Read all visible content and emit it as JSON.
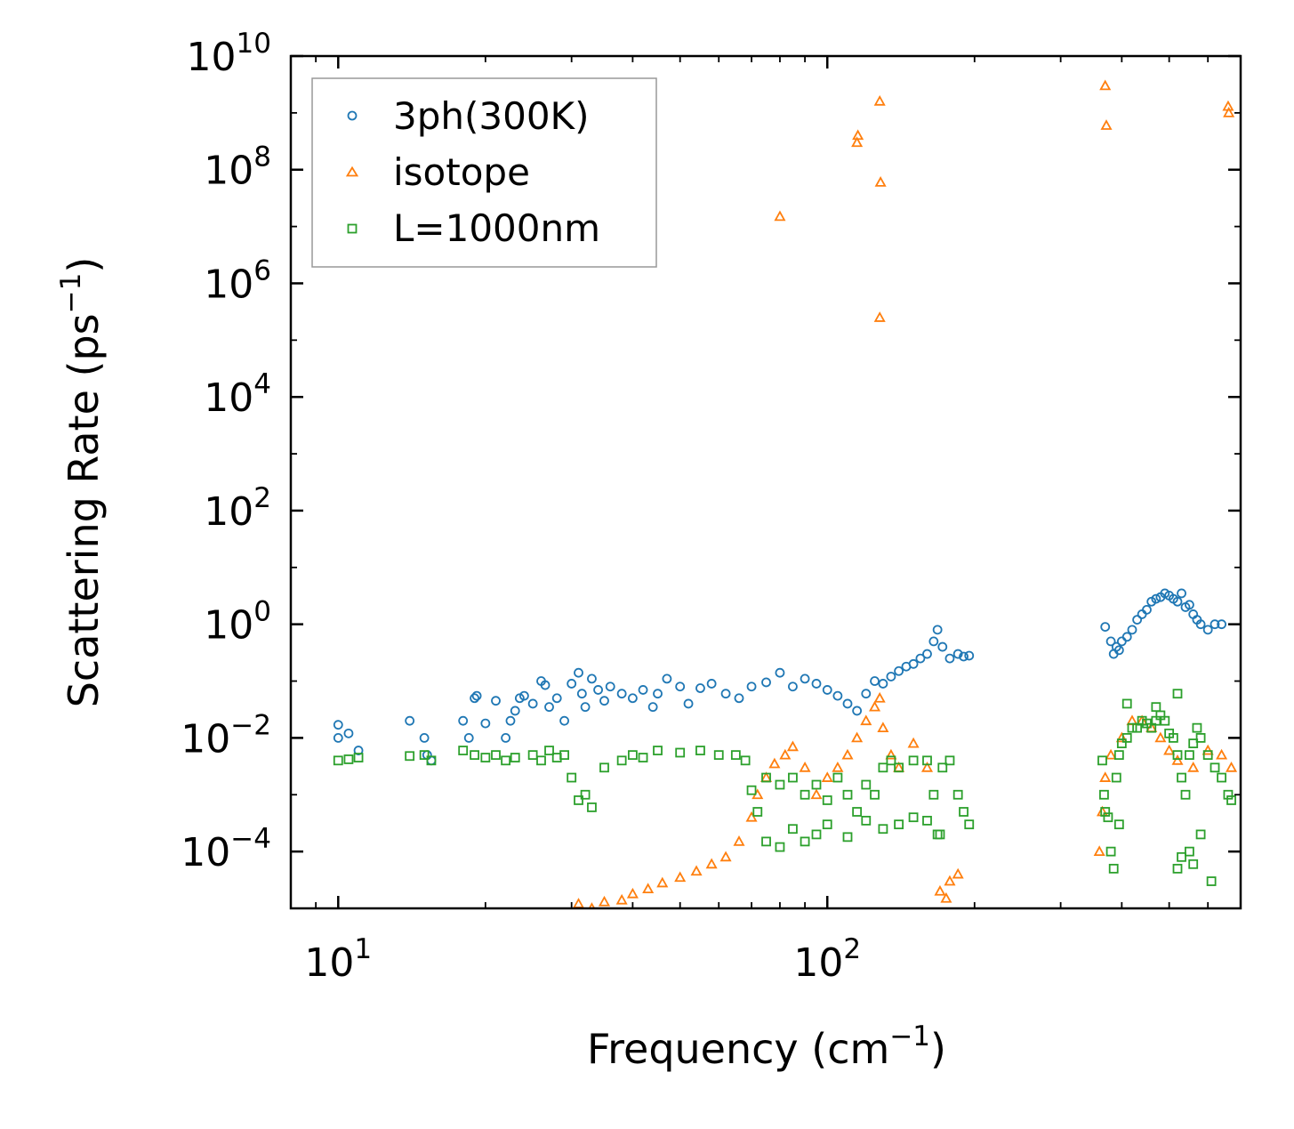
{
  "chart_data": {
    "type": "scatter",
    "xscale": "log",
    "yscale": "log",
    "xlim": [
      8,
      700
    ],
    "ylim": [
      1e-05,
      10000000000.0
    ],
    "xlabel_text": "Frequency (cm",
    "xlabel_sup": "−1",
    "xlabel_close": ")",
    "ylabel_text": "Scattering Rate (ps",
    "ylabel_sup": "−1",
    "ylabel_close": ")",
    "xtick_labels": [
      {
        "value": 10,
        "base": "10",
        "exp": "1"
      },
      {
        "value": 100,
        "base": "10",
        "exp": "2"
      }
    ],
    "ytick_labels": [
      {
        "value": 10000000000.0,
        "base": "10",
        "exp": "10"
      },
      {
        "value": 100000000.0,
        "base": "10",
        "exp": "8"
      },
      {
        "value": 1000000.0,
        "base": "10",
        "exp": "6"
      },
      {
        "value": 10000.0,
        "base": "10",
        "exp": "4"
      },
      {
        "value": 100.0,
        "base": "10",
        "exp": "2"
      },
      {
        "value": 1,
        "base": "10",
        "exp": "0"
      },
      {
        "value": 0.01,
        "base": "10",
        "exp": "−2"
      },
      {
        "value": 0.0001,
        "base": "10",
        "exp": "−4"
      }
    ],
    "legend_position": "upper-left",
    "series": [
      {
        "name": "3ph(300K)",
        "marker": "circle",
        "color": "#1f77b4",
        "points": [
          [
            10,
            0.017
          ],
          [
            10,
            0.01
          ],
          [
            10.5,
            0.012
          ],
          [
            11,
            0.006
          ],
          [
            14,
            0.02
          ],
          [
            15,
            0.01
          ],
          [
            15.2,
            0.005
          ],
          [
            15.5,
            0.004
          ],
          [
            18,
            0.02
          ],
          [
            18.5,
            0.01
          ],
          [
            19,
            0.05
          ],
          [
            19.2,
            0.055
          ],
          [
            20,
            0.018
          ],
          [
            21,
            0.045
          ],
          [
            22,
            0.01
          ],
          [
            22.5,
            0.02
          ],
          [
            23,
            0.03
          ],
          [
            23.5,
            0.05
          ],
          [
            24,
            0.055
          ],
          [
            25,
            0.04
          ],
          [
            26,
            0.1
          ],
          [
            26.5,
            0.085
          ],
          [
            27,
            0.035
          ],
          [
            28,
            0.05
          ],
          [
            29,
            0.02
          ],
          [
            30,
            0.09
          ],
          [
            31,
            0.14
          ],
          [
            31.5,
            0.06
          ],
          [
            32,
            0.035
          ],
          [
            33,
            0.11
          ],
          [
            34,
            0.07
          ],
          [
            35,
            0.045
          ],
          [
            36,
            0.08
          ],
          [
            38,
            0.06
          ],
          [
            40,
            0.05
          ],
          [
            42,
            0.07
          ],
          [
            44,
            0.035
          ],
          [
            45,
            0.06
          ],
          [
            47,
            0.11
          ],
          [
            50,
            0.08
          ],
          [
            52,
            0.04
          ],
          [
            55,
            0.075
          ],
          [
            58,
            0.09
          ],
          [
            62,
            0.06
          ],
          [
            66,
            0.05
          ],
          [
            70,
            0.08
          ],
          [
            75,
            0.095
          ],
          [
            80,
            0.14
          ],
          [
            85,
            0.08
          ],
          [
            90,
            0.11
          ],
          [
            95,
            0.09
          ],
          [
            100,
            0.07
          ],
          [
            105,
            0.055
          ],
          [
            110,
            0.04
          ],
          [
            115,
            0.03
          ],
          [
            120,
            0.06
          ],
          [
            125,
            0.1
          ],
          [
            130,
            0.09
          ],
          [
            135,
            0.12
          ],
          [
            140,
            0.15
          ],
          [
            145,
            0.18
          ],
          [
            150,
            0.2
          ],
          [
            155,
            0.25
          ],
          [
            160,
            0.3
          ],
          [
            165,
            0.5
          ],
          [
            168,
            0.8
          ],
          [
            172,
            0.4
          ],
          [
            178,
            0.25
          ],
          [
            185,
            0.3
          ],
          [
            190,
            0.27
          ],
          [
            195,
            0.28
          ],
          [
            370,
            0.9
          ],
          [
            380,
            0.5
          ],
          [
            385,
            0.3
          ],
          [
            390,
            0.4
          ],
          [
            395,
            0.35
          ],
          [
            400,
            0.5
          ],
          [
            410,
            0.6
          ],
          [
            420,
            0.8
          ],
          [
            430,
            1.2
          ],
          [
            440,
            1.5
          ],
          [
            450,
            1.8
          ],
          [
            460,
            2.5
          ],
          [
            470,
            2.8
          ],
          [
            480,
            3.0
          ],
          [
            490,
            3.5
          ],
          [
            500,
            3.2
          ],
          [
            510,
            2.8
          ],
          [
            520,
            2.5
          ],
          [
            530,
            3.5
          ],
          [
            540,
            2.0
          ],
          [
            550,
            2.2
          ],
          [
            560,
            1.5
          ],
          [
            570,
            1.2
          ],
          [
            580,
            1.0
          ],
          [
            600,
            0.8
          ],
          [
            620,
            1.0
          ],
          [
            640,
            1.0
          ]
        ]
      },
      {
        "name": "isotope",
        "marker": "triangle",
        "color": "#ff7f0e",
        "points": [
          [
            31,
            1.2e-05
          ],
          [
            33,
            1e-05
          ],
          [
            35,
            1.3e-05
          ],
          [
            38,
            1.4e-05
          ],
          [
            40,
            1.8e-05
          ],
          [
            43,
            2.2e-05
          ],
          [
            46,
            2.8e-05
          ],
          [
            50,
            3.5e-05
          ],
          [
            54,
            4.5e-05
          ],
          [
            58,
            6e-05
          ],
          [
            62,
            8e-05
          ],
          [
            66,
            0.00015
          ],
          [
            70,
            0.0004
          ],
          [
            72,
            0.001
          ],
          [
            75,
            0.002
          ],
          [
            78,
            0.0035
          ],
          [
            82,
            0.005
          ],
          [
            85,
            0.007
          ],
          [
            90,
            0.003
          ],
          [
            95,
            0.001
          ],
          [
            100,
            0.002
          ],
          [
            105,
            0.003
          ],
          [
            110,
            0.005
          ],
          [
            115,
            0.01
          ],
          [
            120,
            0.02
          ],
          [
            125,
            0.035
          ],
          [
            128,
            0.05
          ],
          [
            130,
            0.015
          ],
          [
            135,
            0.005
          ],
          [
            140,
            0.003
          ],
          [
            150,
            0.008
          ],
          [
            160,
            0.003
          ],
          [
            170,
            2e-05
          ],
          [
            175,
            1.5e-05
          ],
          [
            178,
            3e-05
          ],
          [
            185,
            4e-05
          ],
          [
            80,
            15000000.0
          ],
          [
            115,
            300000000.0
          ],
          [
            115.5,
            400000000.0
          ],
          [
            128,
            1600000000.0
          ],
          [
            128.5,
            60000000.0
          ],
          [
            128,
            250000.0
          ],
          [
            370,
            3000000000.0
          ],
          [
            372,
            600000000.0
          ],
          [
            660,
            1300000000.0
          ],
          [
            662,
            1000000000.0
          ],
          [
            360,
            0.0001
          ],
          [
            365,
            0.0005
          ],
          [
            370,
            0.002
          ],
          [
            380,
            0.005
          ],
          [
            400,
            0.01
          ],
          [
            420,
            0.02
          ],
          [
            440,
            0.02
          ],
          [
            460,
            0.015
          ],
          [
            480,
            0.01
          ],
          [
            500,
            0.006
          ],
          [
            520,
            0.004
          ],
          [
            560,
            0.003
          ],
          [
            600,
            0.006
          ],
          [
            640,
            0.005
          ],
          [
            670,
            0.003
          ]
        ]
      },
      {
        "name": "L=1000nm",
        "marker": "square",
        "color": "#2ca02c",
        "points": [
          [
            10,
            0.004
          ],
          [
            10.5,
            0.0042
          ],
          [
            11,
            0.0045
          ],
          [
            14,
            0.0048
          ],
          [
            15,
            0.005
          ],
          [
            15.5,
            0.004
          ],
          [
            18,
            0.006
          ],
          [
            19,
            0.005
          ],
          [
            20,
            0.0045
          ],
          [
            21,
            0.005
          ],
          [
            22,
            0.004
          ],
          [
            23,
            0.0045
          ],
          [
            25,
            0.005
          ],
          [
            26,
            0.004
          ],
          [
            27,
            0.006
          ],
          [
            28,
            0.0045
          ],
          [
            29,
            0.005
          ],
          [
            30,
            0.002
          ],
          [
            31,
            0.0008
          ],
          [
            32,
            0.001
          ],
          [
            33,
            0.0006
          ],
          [
            35,
            0.003
          ],
          [
            38,
            0.004
          ],
          [
            40,
            0.005
          ],
          [
            42,
            0.0045
          ],
          [
            45,
            0.006
          ],
          [
            50,
            0.0055
          ],
          [
            55,
            0.006
          ],
          [
            60,
            0.005
          ],
          [
            65,
            0.005
          ],
          [
            68,
            0.004
          ],
          [
            70,
            0.0012
          ],
          [
            72,
            0.0005
          ],
          [
            75,
            0.002
          ],
          [
            80,
            0.0015
          ],
          [
            85,
            0.002
          ],
          [
            90,
            0.001
          ],
          [
            95,
            0.0015
          ],
          [
            100,
            0.0008
          ],
          [
            105,
            0.002
          ],
          [
            110,
            0.001
          ],
          [
            115,
            0.0005
          ],
          [
            120,
            0.0015
          ],
          [
            125,
            0.001
          ],
          [
            130,
            0.003
          ],
          [
            135,
            0.004
          ],
          [
            140,
            0.003
          ],
          [
            150,
            0.004
          ],
          [
            160,
            0.004
          ],
          [
            165,
            0.001
          ],
          [
            168,
            0.0002
          ],
          [
            172,
            0.003
          ],
          [
            178,
            0.004
          ],
          [
            185,
            0.001
          ],
          [
            190,
            0.0005
          ],
          [
            195,
            0.0003
          ],
          [
            75,
            0.00015
          ],
          [
            80,
            0.00012
          ],
          [
            85,
            0.00025
          ],
          [
            90,
            0.00015
          ],
          [
            95,
            0.0002
          ],
          [
            100,
            0.0003
          ],
          [
            110,
            0.00018
          ],
          [
            120,
            0.00035
          ],
          [
            130,
            0.00025
          ],
          [
            140,
            0.0003
          ],
          [
            150,
            0.0004
          ],
          [
            160,
            0.00035
          ],
          [
            170,
            0.0002
          ],
          [
            365,
            0.004
          ],
          [
            368,
            0.001
          ],
          [
            370,
            0.0005
          ],
          [
            375,
            0.0004
          ],
          [
            380,
            0.0001
          ],
          [
            385,
            5e-05
          ],
          [
            390,
            0.002
          ],
          [
            395,
            0.005
          ],
          [
            400,
            0.008
          ],
          [
            410,
            0.01
          ],
          [
            420,
            0.015
          ],
          [
            430,
            0.015
          ],
          [
            440,
            0.02
          ],
          [
            450,
            0.018
          ],
          [
            460,
            0.015
          ],
          [
            470,
            0.02
          ],
          [
            480,
            0.025
          ],
          [
            490,
            0.02
          ],
          [
            500,
            0.012
          ],
          [
            510,
            0.01
          ],
          [
            520,
            0.005
          ],
          [
            530,
            0.002
          ],
          [
            540,
            0.001
          ],
          [
            550,
            0.005
          ],
          [
            560,
            0.008
          ],
          [
            570,
            0.015
          ],
          [
            580,
            0.01
          ],
          [
            600,
            0.005
          ],
          [
            620,
            0.003
          ],
          [
            640,
            0.002
          ],
          [
            660,
            0.001
          ],
          [
            670,
            0.0008
          ],
          [
            410,
            0.04
          ],
          [
            520,
            0.06
          ],
          [
            470,
            0.035
          ],
          [
            395,
            0.0003
          ],
          [
            550,
            0.0001
          ],
          [
            560,
            6e-05
          ],
          [
            580,
            0.0002
          ],
          [
            610,
            3e-05
          ],
          [
            530,
            8e-05
          ],
          [
            520,
            5e-05
          ]
        ]
      }
    ]
  }
}
